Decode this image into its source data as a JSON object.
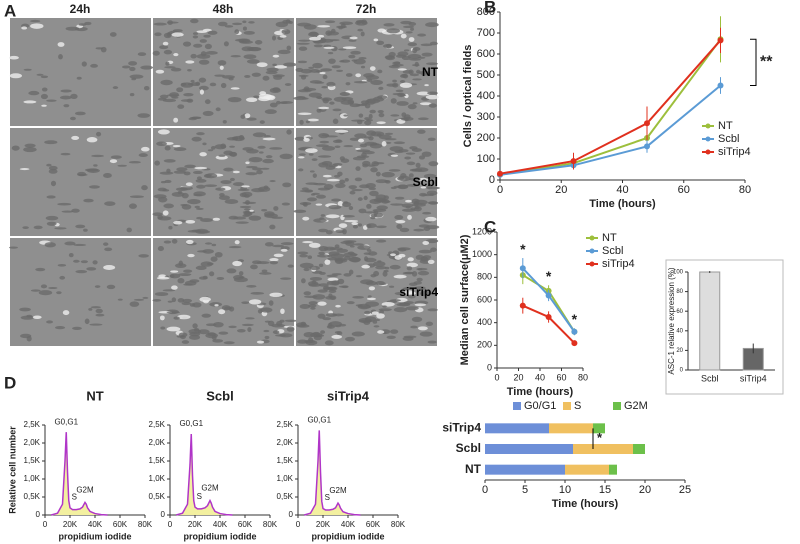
{
  "panel_letters": [
    "A",
    "B",
    "C",
    "D"
  ],
  "micrographs": {
    "columns": [
      "24h",
      "48h",
      "72h"
    ],
    "rows": [
      "NT",
      "Scbl",
      "siTrip4"
    ]
  },
  "chart_data": [
    {
      "type": "line",
      "ylabel": "Cells / optical fields",
      "xlabel": "Time (hours)",
      "annotation": "**",
      "x": [
        0,
        24,
        48,
        72
      ],
      "xlim": [
        0,
        80
      ],
      "xticks": [
        0,
        20,
        40,
        60,
        80
      ],
      "ylim": [
        0,
        800
      ],
      "yticks": [
        0,
        100,
        200,
        300,
        400,
        500,
        600,
        700,
        800
      ],
      "series": [
        {
          "name": "NT",
          "color": "#9dbf3c",
          "values": [
            25,
            80,
            200,
            670
          ],
          "errors": [
            5,
            20,
            50,
            110
          ]
        },
        {
          "name": "Scbl",
          "color": "#5b9bd5",
          "values": [
            25,
            70,
            160,
            450
          ],
          "errors": [
            5,
            15,
            30,
            40
          ]
        },
        {
          "name": "siTrip4",
          "color": "#e0301e",
          "values": [
            30,
            90,
            270,
            665
          ],
          "errors": [
            5,
            40,
            80,
            60
          ]
        }
      ]
    },
    {
      "type": "line",
      "ylabel": "Median cell surface(μM2)",
      "xlabel": "Time (hours)",
      "annotations": [
        "*",
        "*",
        "*"
      ],
      "x": [
        24,
        48,
        72
      ],
      "xlim": [
        0,
        80
      ],
      "xticks": [
        0,
        20,
        40,
        60,
        80
      ],
      "ylim": [
        0,
        1200
      ],
      "yticks": [
        0,
        200,
        400,
        600,
        800,
        1000,
        1200
      ],
      "series": [
        {
          "name": "NT",
          "color": "#9dbf3c",
          "values": [
            820,
            680,
            320
          ],
          "errors": [
            80,
            50,
            30
          ]
        },
        {
          "name": "Scbl",
          "color": "#5b9bd5",
          "values": [
            880,
            640,
            320
          ],
          "errors": [
            90,
            50,
            30
          ]
        },
        {
          "name": "siTrip4",
          "color": "#e0301e",
          "values": [
            550,
            450,
            220
          ],
          "errors": [
            70,
            50,
            20
          ]
        }
      ]
    },
    {
      "type": "bar",
      "ylabel": "ASC-1 relative expression (%)",
      "categories": [
        "Scbl",
        "siTrip4"
      ],
      "values": [
        100,
        22
      ],
      "errors": [
        1,
        5
      ],
      "colors": [
        "#dddddd",
        "#666666"
      ],
      "ylim": [
        0,
        100
      ],
      "yticks": [
        0,
        20,
        40,
        60,
        80,
        100
      ]
    },
    {
      "type": "histogram-curve",
      "title": "NT",
      "ylabel": "Relative cell number",
      "xlabel": "propidium iodide",
      "peak_labels": [
        "G0,G1",
        "S",
        "G2M"
      ],
      "color": "#b035c8",
      "x": [
        5000,
        10000,
        14000,
        16000,
        17000,
        18000,
        19000,
        20000,
        22000,
        25000,
        28000,
        30000,
        32000,
        33000,
        34000,
        36000,
        40000,
        45000,
        50000
      ],
      "xlim": [
        0,
        80000
      ],
      "xticks": [
        0,
        {
          "value": 20000,
          "label": "20K"
        },
        {
          "value": 40000,
          "label": "40K"
        },
        {
          "value": 60000,
          "label": "60K"
        },
        {
          "value": 80000,
          "label": "80K"
        }
      ],
      "ylim": [
        0,
        2500
      ],
      "yticks": [
        0,
        {
          "value": 500,
          "label": "0,5K"
        },
        {
          "value": 1000,
          "label": "1,0K"
        },
        {
          "value": 1500,
          "label": "1,5K"
        },
        {
          "value": 2000,
          "label": "2,0K"
        },
        {
          "value": 2500,
          "label": "2,5K"
        }
      ],
      "values": [
        0,
        50,
        300,
        1500,
        2300,
        1200,
        400,
        200,
        150,
        150,
        170,
        220,
        350,
        300,
        200,
        100,
        40,
        10,
        0
      ]
    },
    {
      "type": "histogram-curve",
      "title": "Scbl",
      "xlabel": "propidium iodide",
      "peak_labels": [
        "G0,G1",
        "S",
        "G2M"
      ],
      "color": "#b035c8",
      "x": [
        5000,
        10000,
        14000,
        16000,
        17000,
        18000,
        19000,
        20000,
        22000,
        25000,
        28000,
        30000,
        32000,
        33000,
        34000,
        36000,
        40000,
        45000,
        50000
      ],
      "xlim": [
        0,
        80000
      ],
      "xticks": [
        0,
        {
          "value": 20000,
          "label": "20K"
        },
        {
          "value": 40000,
          "label": "40K"
        },
        {
          "value": 60000,
          "label": "60K"
        },
        {
          "value": 80000,
          "label": "80K"
        }
      ],
      "ylim": [
        0,
        2500
      ],
      "yticks": [
        0,
        {
          "value": 500,
          "label": "0,5K"
        },
        {
          "value": 1000,
          "label": "1,0K"
        },
        {
          "value": 1500,
          "label": "1,5K"
        },
        {
          "value": 2000,
          "label": "2,0K"
        },
        {
          "value": 2500,
          "label": "2,5K"
        }
      ],
      "values": [
        0,
        50,
        300,
        1400,
        2250,
        1100,
        400,
        220,
        170,
        170,
        200,
        260,
        400,
        330,
        220,
        100,
        40,
        10,
        0
      ]
    },
    {
      "type": "histogram-curve",
      "title": "siTrip4",
      "xlabel": "propidium iodide",
      "peak_labels": [
        "G0,G1",
        "S",
        "G2M"
      ],
      "color": "#b035c8",
      "x": [
        5000,
        10000,
        14000,
        16000,
        17000,
        18000,
        19000,
        20000,
        22000,
        25000,
        28000,
        30000,
        32000,
        33000,
        34000,
        36000,
        40000,
        45000,
        50000
      ],
      "xlim": [
        0,
        80000
      ],
      "xticks": [
        0,
        {
          "value": 20000,
          "label": "20K"
        },
        {
          "value": 40000,
          "label": "40K"
        },
        {
          "value": 60000,
          "label": "60K"
        },
        {
          "value": 80000,
          "label": "80K"
        }
      ],
      "ylim": [
        0,
        2500
      ],
      "yticks": [
        0,
        {
          "value": 500,
          "label": "0,5K"
        },
        {
          "value": 1000,
          "label": "1,0K"
        },
        {
          "value": 1500,
          "label": "1,5K"
        },
        {
          "value": 2000,
          "label": "2,0K"
        },
        {
          "value": 2500,
          "label": "2,5K"
        }
      ],
      "values": [
        0,
        50,
        300,
        1500,
        2350,
        1200,
        380,
        180,
        140,
        140,
        160,
        200,
        330,
        280,
        190,
        90,
        40,
        10,
        0
      ]
    },
    {
      "type": "stacked-barh",
      "xlabel": "Time (hours)",
      "annotation": "*",
      "categories": [
        "siTrip4",
        "Scbl",
        "NT"
      ],
      "xlim": [
        0,
        25
      ],
      "xticks": [
        0,
        5,
        10,
        15,
        20,
        25
      ],
      "series": [
        {
          "name": "G0/G1",
          "color": "#6d8fd8",
          "values": [
            8,
            11,
            10
          ]
        },
        {
          "name": "S",
          "color": "#f0c060",
          "values": [
            5.5,
            7.5,
            5.5
          ]
        },
        {
          "name": "G2M",
          "color": "#6cc04a",
          "values": [
            1.5,
            1.5,
            1
          ]
        }
      ]
    }
  ]
}
